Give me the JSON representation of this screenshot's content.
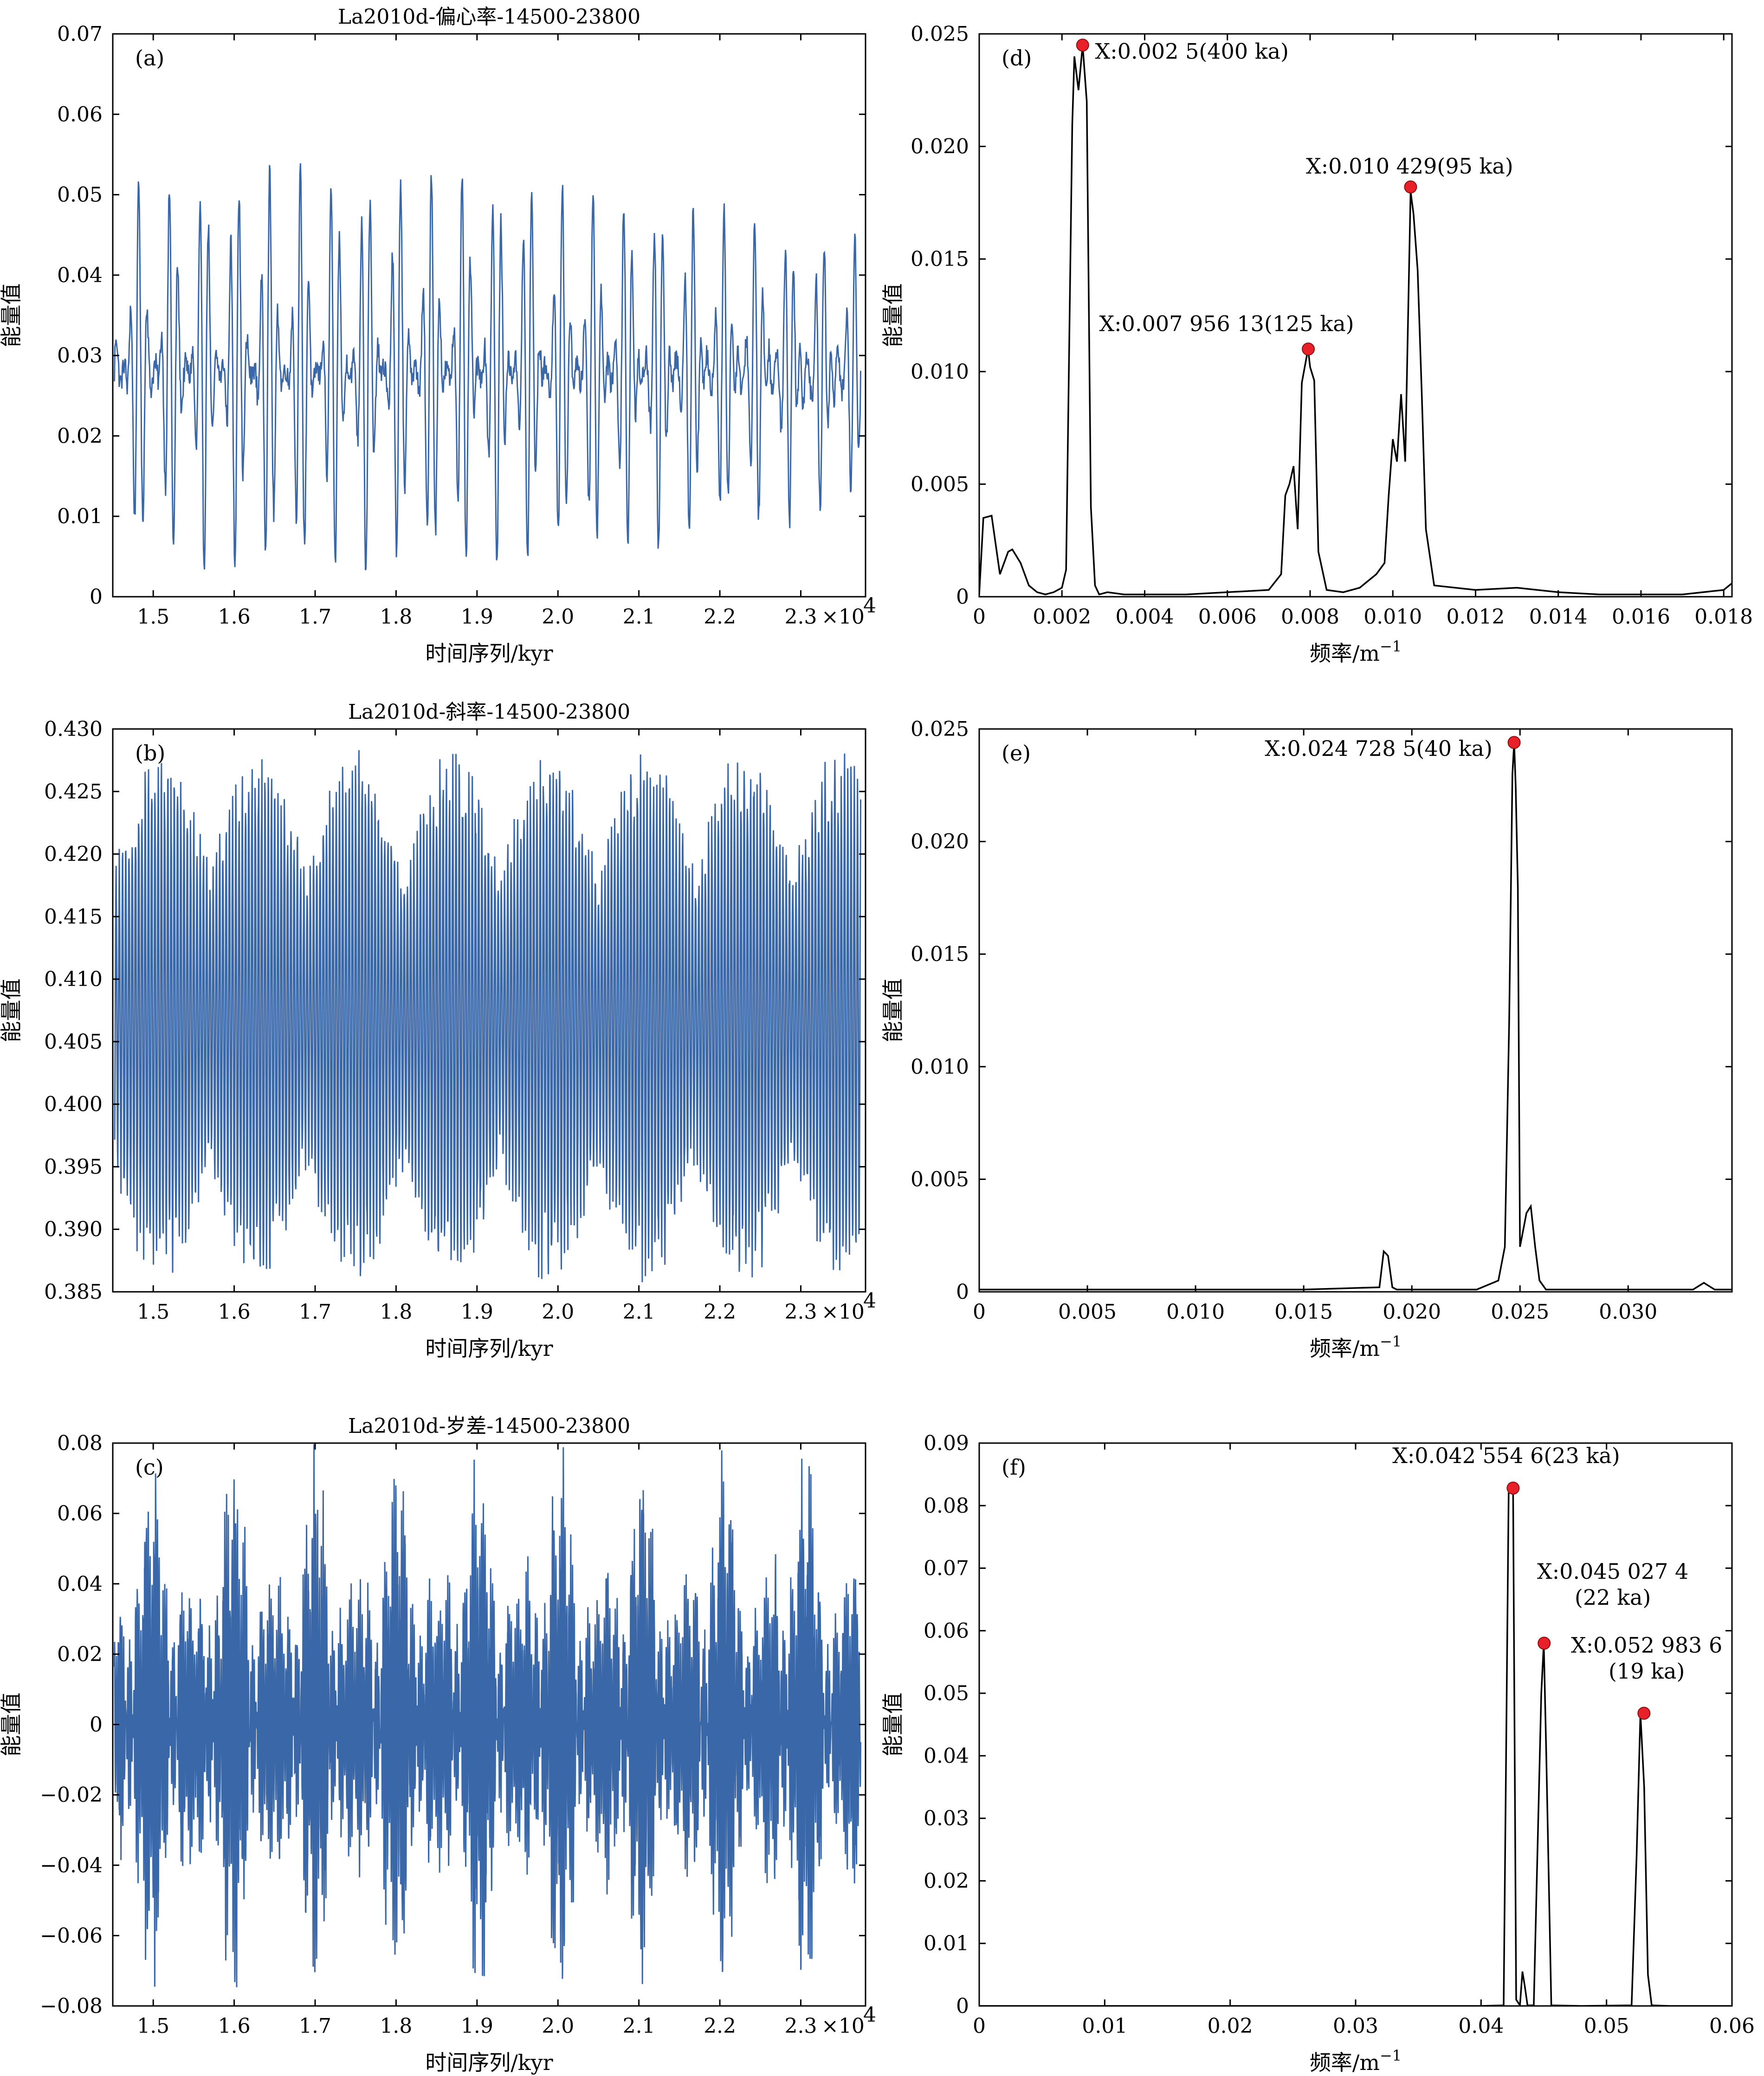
{
  "colors": {
    "series_time": "#3A67A8",
    "series_spectrum": "#000000",
    "peak_marker": "#E8202A"
  },
  "chart_data": [
    {
      "id": "a",
      "type": "line",
      "panel_label": "(a)",
      "title": "La2010d-偏心率-14500-23800",
      "xlabel": "时间序列/kyr",
      "ylabel": "能量值",
      "x_exponent_label": "×10",
      "x_exponent_power": "4",
      "xlim": [
        1.45,
        2.38
      ],
      "ylim": [
        0,
        0.07
      ],
      "xticks": [
        1.5,
        1.6,
        1.7,
        1.8,
        1.9,
        2.0,
        2.1,
        2.2,
        2.3
      ],
      "xticklabels": [
        "1.5",
        "1.6",
        "1.7",
        "1.8",
        "1.9",
        "2.0",
        "2.1",
        "2.2",
        "2.3"
      ],
      "yticks": [
        0,
        0.01,
        0.02,
        0.03,
        0.04,
        0.05,
        0.06,
        0.07
      ],
      "yticklabels": [
        "0",
        "0.01",
        "0.02",
        "0.03",
        "0.04",
        "0.05",
        "0.06",
        "0.07"
      ],
      "series": [
        {
          "mean": 0.028,
          "amplitude": 0.024,
          "periods": [
            0.0405,
            0.0095,
            0.0125
          ]
        }
      ]
    },
    {
      "id": "b",
      "type": "line",
      "panel_label": "(b)",
      "title": "La2010d-斜率-14500-23800",
      "xlabel": "时间序列/kyr",
      "ylabel": "能量值",
      "x_exponent_label": "×10",
      "x_exponent_power": "4",
      "xlim": [
        1.45,
        2.38
      ],
      "ylim": [
        0.385,
        0.43
      ],
      "xticks": [
        1.5,
        1.6,
        1.7,
        1.8,
        1.9,
        2.0,
        2.1,
        2.2,
        2.3
      ],
      "xticklabels": [
        "1.5",
        "1.6",
        "1.7",
        "1.8",
        "1.9",
        "2.0",
        "2.1",
        "2.2",
        "2.3"
      ],
      "yticks": [
        0.385,
        0.39,
        0.395,
        0.4,
        0.405,
        0.41,
        0.415,
        0.42,
        0.425,
        0.43
      ],
      "yticklabels": [
        "0.385",
        "0.390",
        "0.395",
        "0.400",
        "0.405",
        "0.410",
        "0.415",
        "0.420",
        "0.425",
        "0.430"
      ],
      "series": [
        {
          "mean": 0.407,
          "amplitude": 0.019,
          "periods": [
            0.004
          ]
        }
      ]
    },
    {
      "id": "c",
      "type": "line",
      "panel_label": "(c)",
      "title": "La2010d-岁差-14500-23800",
      "xlabel": "时间序列/kyr",
      "ylabel": "能量值",
      "x_exponent_label": "×10",
      "x_exponent_power": "4",
      "xlim": [
        1.45,
        2.38
      ],
      "ylim": [
        -0.08,
        0.08
      ],
      "xticks": [
        1.5,
        1.6,
        1.7,
        1.8,
        1.9,
        2.0,
        2.1,
        2.2,
        2.3
      ],
      "xticklabels": [
        "1.5",
        "1.6",
        "1.7",
        "1.8",
        "1.9",
        "2.0",
        "2.1",
        "2.2",
        "2.3"
      ],
      "yticks": [
        -0.08,
        -0.06,
        -0.04,
        -0.02,
        0,
        0.02,
        0.04,
        0.06,
        0.08
      ],
      "yticklabels": [
        "−0.08",
        "−0.06",
        "−0.04",
        "−0.02",
        "0",
        "0.02",
        "0.04",
        "0.06",
        "0.08"
      ],
      "series": [
        {
          "mean": 0,
          "amplitude": 0.055,
          "periods": [
            0.0023,
            0.0022,
            0.0019
          ]
        }
      ]
    },
    {
      "id": "d",
      "type": "line",
      "panel_label": "(d)",
      "title": "",
      "xlabel": "频率/m",
      "xlabel_sup": "−1",
      "ylabel": "能量值",
      "xlim": [
        0,
        0.0182
      ],
      "ylim": [
        0,
        0.025
      ],
      "xticks": [
        0,
        0.002,
        0.004,
        0.006,
        0.008,
        0.01,
        0.012,
        0.014,
        0.016,
        0.018
      ],
      "xticklabels": [
        "0",
        "0.002",
        "0.004",
        "0.006",
        "0.008",
        "0.010",
        "0.012",
        "0.014",
        "0.016",
        "0.018"
      ],
      "yticks": [
        0,
        0.005,
        0.01,
        0.015,
        0.02,
        0.025
      ],
      "yticklabels": [
        "0",
        "0.005",
        "0.010",
        "0.015",
        "0.020",
        "0.025"
      ],
      "series": [
        {
          "x": [
            0,
            0.0001,
            0.0003,
            0.0005,
            0.0007,
            0.0008,
            0.001,
            0.0012,
            0.0014,
            0.0016,
            0.0018,
            0.002,
            0.0021,
            0.00225,
            0.0023,
            0.0024,
            0.0025,
            0.0026,
            0.0027,
            0.0028,
            0.0029,
            0.0031,
            0.0035,
            0.004,
            0.005,
            0.006,
            0.007,
            0.0073,
            0.0074,
            0.0075,
            0.0076,
            0.0077,
            0.0078,
            0.00795,
            0.008,
            0.0081,
            0.0082,
            0.0084,
            0.0088,
            0.0092,
            0.0096,
            0.0098,
            0.0099,
            0.01,
            0.0101,
            0.0102,
            0.0103,
            0.01043,
            0.0105,
            0.0106,
            0.0107,
            0.0108,
            0.011,
            0.012,
            0.013,
            0.014,
            0.015,
            0.016,
            0.017,
            0.018,
            0.0182
          ],
          "y": [
            0.0001,
            0.0035,
            0.0036,
            0.001,
            0.002,
            0.0021,
            0.0015,
            0.0005,
            0.0002,
            0.0001,
            0.0002,
            0.0004,
            0.0012,
            0.021,
            0.024,
            0.0225,
            0.0245,
            0.022,
            0.004,
            0.0005,
            0.0001,
            0.0002,
            0.0001,
            0.0001,
            0.0001,
            0.0002,
            0.0003,
            0.001,
            0.0045,
            0.005,
            0.0058,
            0.003,
            0.0095,
            0.011,
            0.0102,
            0.0096,
            0.002,
            0.0003,
            0.0002,
            0.0004,
            0.001,
            0.0015,
            0.0045,
            0.007,
            0.006,
            0.009,
            0.006,
            0.018,
            0.017,
            0.0145,
            0.009,
            0.003,
            0.0005,
            0.0003,
            0.0004,
            0.0002,
            0.0001,
            0.0001,
            0.0001,
            0.0003,
            0.0006
          ]
        }
      ],
      "annotations": [
        {
          "x": 0.0025,
          "y": 0.0245,
          "text": "X:0.002 5(400 ka)",
          "lines": [
            "X:0.002 5(400 ka)"
          ],
          "tx": 0.0028,
          "ty": 0.0239,
          "anchor": "start"
        },
        {
          "x": 0.00795613,
          "y": 0.011,
          "text": "X:0.007 956 13(125 ka)",
          "lines": [
            "X:0.007 956 13(125 ka)"
          ],
          "tx": 0.0029,
          "ty": 0.0118,
          "anchor": "start"
        },
        {
          "x": 0.010429,
          "y": 0.0182,
          "text": "X:0.010 429(95 ka)",
          "lines": [
            "X:0.010 429(95 ka)"
          ],
          "tx": 0.0079,
          "ty": 0.0188,
          "anchor": "start"
        }
      ]
    },
    {
      "id": "e",
      "type": "line",
      "panel_label": "(e)",
      "title": "",
      "xlabel": "频率/m",
      "xlabel_sup": "−1",
      "ylabel": "能量值",
      "xlim": [
        0,
        0.0348
      ],
      "ylim": [
        0,
        0.025
      ],
      "xticks": [
        0,
        0.005,
        0.01,
        0.015,
        0.02,
        0.025,
        0.03
      ],
      "xticklabels": [
        "0",
        "0.005",
        "0.010",
        "0.015",
        "0.020",
        "0.025",
        "0.030"
      ],
      "yticks": [
        0,
        0.005,
        0.01,
        0.015,
        0.02,
        0.025
      ],
      "yticklabels": [
        "0",
        "0.005",
        "0.010",
        "0.015",
        "0.020",
        "0.025"
      ],
      "series": [
        {
          "x": [
            0,
            0.005,
            0.01,
            0.015,
            0.0185,
            0.0187,
            0.0189,
            0.0191,
            0.0193,
            0.02,
            0.023,
            0.024,
            0.0243,
            0.0245,
            0.02465,
            0.02473,
            0.0248,
            0.0249,
            0.025,
            0.0251,
            0.0253,
            0.0255,
            0.0257,
            0.0259,
            0.0262,
            0.028,
            0.033,
            0.0335,
            0.034,
            0.0348
          ],
          "y": [
            0.0001,
            0.0001,
            0.0001,
            0.0001,
            0.0002,
            0.0018,
            0.0016,
            0.0002,
            0.0001,
            0.0001,
            0.0001,
            0.0005,
            0.002,
            0.012,
            0.023,
            0.0244,
            0.0225,
            0.018,
            0.002,
            0.0025,
            0.0035,
            0.0038,
            0.002,
            0.0005,
            0.0001,
            0.0001,
            0.0001,
            0.0004,
            0.0001,
            0.0001
          ]
        }
      ],
      "annotations": [
        {
          "x": 0.0247285,
          "y": 0.0244,
          "text": "X:0.024 728 5(40 ka)",
          "lines": [
            "X:0.024 728 5(40 ka)"
          ],
          "tx": 0.0132,
          "ty": 0.0238,
          "anchor": "start"
        }
      ]
    },
    {
      "id": "f",
      "type": "line",
      "panel_label": "(f)",
      "title": "",
      "xlabel": "频率/m",
      "xlabel_sup": "−1",
      "ylabel": "能量值",
      "xlim": [
        0,
        0.06
      ],
      "ylim": [
        0,
        0.09
      ],
      "xticks": [
        0,
        0.01,
        0.02,
        0.03,
        0.04,
        0.05,
        0.06
      ],
      "xticklabels": [
        "0",
        "0.01",
        "0.02",
        "0.03",
        "0.04",
        "0.05",
        "0.06"
      ],
      "yticks": [
        0,
        0.01,
        0.02,
        0.03,
        0.04,
        0.05,
        0.06,
        0.07,
        0.08,
        0.09
      ],
      "yticklabels": [
        "0",
        "0.01",
        "0.02",
        "0.03",
        "0.04",
        "0.05",
        "0.06",
        "0.07",
        "0.08",
        "0.09"
      ],
      "series": [
        {
          "x": [
            0,
            0.02,
            0.04,
            0.0418,
            0.0422,
            0.04255,
            0.0428,
            0.0431,
            0.0433,
            0.0435,
            0.0437,
            0.0442,
            0.0448,
            0.045,
            0.0452,
            0.0456,
            0.048,
            0.052,
            0.0524,
            0.0527,
            0.053,
            0.0533,
            0.0536,
            0.055,
            0.06
          ],
          "y": [
            0,
            0,
            0,
            0.0001,
            0.082,
            0.0828,
            0.001,
            0.0001,
            0.0055,
            0.003,
            0.0001,
            0.0001,
            0.05,
            0.058,
            0.04,
            0.0001,
            0,
            0.0001,
            0.024,
            0.0468,
            0.035,
            0.005,
            0.0001,
            0,
            0
          ]
        }
      ],
      "annotations": [
        {
          "x": 0.0425546,
          "y": 0.0828,
          "text": "X:0.042 554 6(23 ka)",
          "lines": [
            "X:0.042 554 6(23 ka)"
          ],
          "tx": 0.042,
          "ty": 0.0868,
          "anchor": "middle"
        },
        {
          "x": 0.0450274,
          "y": 0.058,
          "text": "X:0.045 027 4 (22 ka)",
          "lines": [
            "X:0.045 027 4",
            "(22 ka)"
          ],
          "tx": 0.0505,
          "ty": 0.0683,
          "anchor": "middle"
        },
        {
          "x": 0.0529836,
          "y": 0.0468,
          "text": "X:0.052 983 6 (19 ka)",
          "lines": [
            "X:0.052 983 6",
            "(19 ka)"
          ],
          "tx": 0.0532,
          "ty": 0.0565,
          "anchor": "middle"
        }
      ]
    }
  ]
}
